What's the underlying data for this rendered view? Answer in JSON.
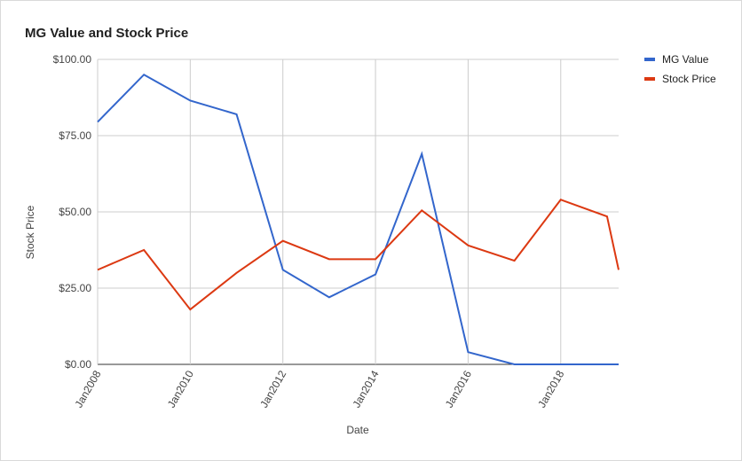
{
  "chart_data": {
    "type": "line",
    "title": "MG Value and Stock Price",
    "x_label": "Date",
    "y_label": "Stock Price",
    "x": [
      2008,
      2009,
      2010,
      2011,
      2012,
      2013,
      2014,
      2015,
      2016,
      2017,
      2018,
      2019,
      2019.25
    ],
    "xlim": [
      2008,
      2019.25
    ],
    "xticks": [
      {
        "value": 2008,
        "label": "Jan2008"
      },
      {
        "value": 2010,
        "label": "Jan2010"
      },
      {
        "value": 2012,
        "label": "Jan2012"
      },
      {
        "value": 2014,
        "label": "Jan2014"
      },
      {
        "value": 2016,
        "label": "Jan2016"
      },
      {
        "value": 2018,
        "label": "Jan2018"
      }
    ],
    "ylim": [
      0,
      100
    ],
    "yticks": [
      {
        "value": 0,
        "label": "$0.00"
      },
      {
        "value": 25,
        "label": "$25.00"
      },
      {
        "value": 50,
        "label": "$50.00"
      },
      {
        "value": 75,
        "label": "$75.00"
      },
      {
        "value": 100,
        "label": "$100.00"
      }
    ],
    "grid": true,
    "legend": "right",
    "series": [
      {
        "name": "MG Value",
        "color": "#3366cc",
        "values": [
          79.5,
          95,
          86.5,
          82,
          31,
          22,
          29.5,
          69,
          4,
          0,
          0,
          0,
          0
        ]
      },
      {
        "name": "Stock Price",
        "color": "#dc3912",
        "values": [
          31,
          37.5,
          18,
          30,
          40.5,
          34.5,
          34.5,
          50.5,
          39,
          34,
          54,
          48.5,
          31
        ]
      }
    ]
  }
}
